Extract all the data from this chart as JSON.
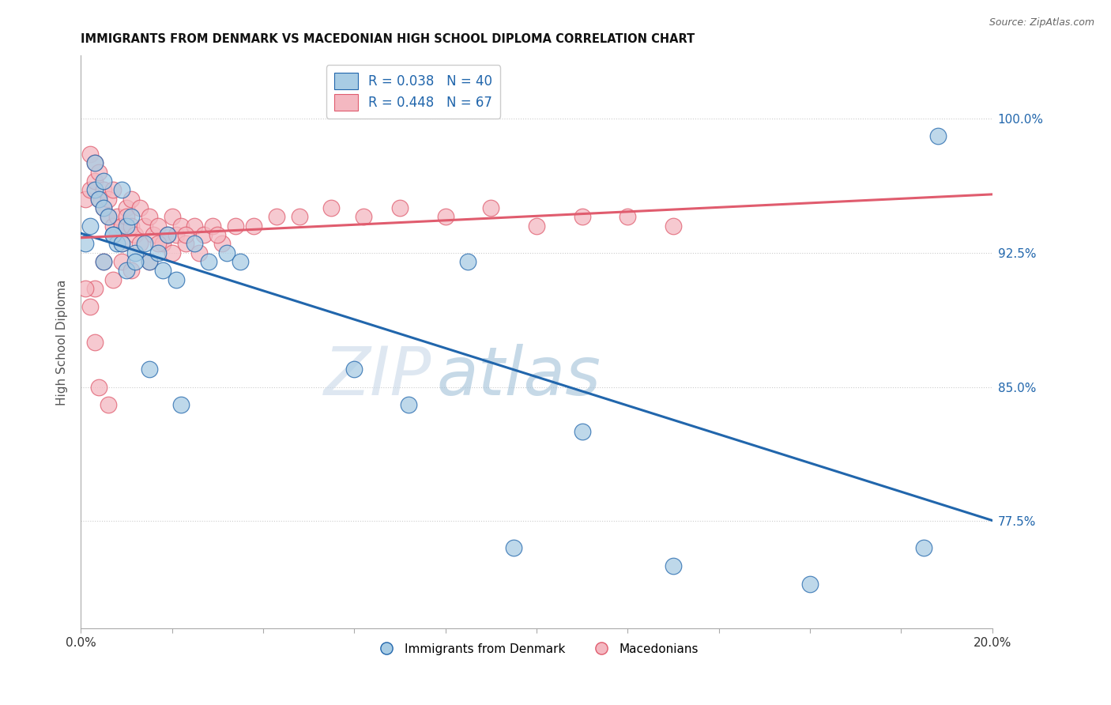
{
  "title": "IMMIGRANTS FROM DENMARK VS MACEDONIAN HIGH SCHOOL DIPLOMA CORRELATION CHART",
  "source": "Source: ZipAtlas.com",
  "ylabel": "High School Diploma",
  "ytick_labels": [
    "100.0%",
    "92.5%",
    "85.0%",
    "77.5%"
  ],
  "ytick_values": [
    1.0,
    0.925,
    0.85,
    0.775
  ],
  "xlim": [
    0.0,
    0.2
  ],
  "ylim": [
    0.715,
    1.035
  ],
  "legend_line1": "R = 0.038   N = 40",
  "legend_line2": "R = 0.448   N = 67",
  "blue_color": "#a8cce4",
  "pink_color": "#f4b8c1",
  "blue_line_color": "#2166ac",
  "pink_line_color": "#e05c6e",
  "watermark_zip": "ZIP",
  "watermark_atlas": "atlas",
  "blue_scatter_x": [
    0.001,
    0.002,
    0.003,
    0.003,
    0.004,
    0.005,
    0.005,
    0.006,
    0.007,
    0.008,
    0.009,
    0.01,
    0.011,
    0.012,
    0.014,
    0.015,
    0.017,
    0.019,
    0.021,
    0.025,
    0.028,
    0.032,
    0.005,
    0.007,
    0.009,
    0.01,
    0.012,
    0.015,
    0.018,
    0.022,
    0.035,
    0.06,
    0.072,
    0.085,
    0.095,
    0.11,
    0.13,
    0.16,
    0.185,
    0.188
  ],
  "blue_scatter_y": [
    0.93,
    0.94,
    0.96,
    0.975,
    0.955,
    0.965,
    0.95,
    0.945,
    0.935,
    0.93,
    0.96,
    0.94,
    0.945,
    0.925,
    0.93,
    0.92,
    0.925,
    0.935,
    0.91,
    0.93,
    0.92,
    0.925,
    0.92,
    0.935,
    0.93,
    0.915,
    0.92,
    0.86,
    0.915,
    0.84,
    0.92,
    0.86,
    0.84,
    0.92,
    0.76,
    0.825,
    0.75,
    0.74,
    0.76,
    0.99
  ],
  "pink_scatter_x": [
    0.001,
    0.002,
    0.002,
    0.003,
    0.003,
    0.004,
    0.004,
    0.005,
    0.005,
    0.006,
    0.006,
    0.007,
    0.007,
    0.008,
    0.008,
    0.009,
    0.009,
    0.01,
    0.01,
    0.011,
    0.011,
    0.012,
    0.013,
    0.014,
    0.015,
    0.016,
    0.017,
    0.018,
    0.019,
    0.02,
    0.021,
    0.022,
    0.023,
    0.025,
    0.027,
    0.029,
    0.031,
    0.003,
    0.005,
    0.007,
    0.009,
    0.011,
    0.013,
    0.015,
    0.017,
    0.02,
    0.023,
    0.026,
    0.03,
    0.034,
    0.038,
    0.043,
    0.048,
    0.055,
    0.062,
    0.07,
    0.08,
    0.09,
    0.1,
    0.11,
    0.12,
    0.13,
    0.001,
    0.002,
    0.003,
    0.004,
    0.006
  ],
  "pink_scatter_y": [
    0.955,
    0.96,
    0.98,
    0.965,
    0.975,
    0.955,
    0.97,
    0.95,
    0.96,
    0.945,
    0.955,
    0.96,
    0.94,
    0.945,
    0.935,
    0.94,
    0.93,
    0.95,
    0.945,
    0.94,
    0.955,
    0.935,
    0.95,
    0.94,
    0.945,
    0.935,
    0.94,
    0.93,
    0.935,
    0.945,
    0.935,
    0.94,
    0.93,
    0.94,
    0.935,
    0.94,
    0.93,
    0.905,
    0.92,
    0.91,
    0.92,
    0.915,
    0.93,
    0.92,
    0.93,
    0.925,
    0.935,
    0.925,
    0.935,
    0.94,
    0.94,
    0.945,
    0.945,
    0.95,
    0.945,
    0.95,
    0.945,
    0.95,
    0.94,
    0.945,
    0.945,
    0.94,
    0.905,
    0.895,
    0.875,
    0.85,
    0.84
  ]
}
